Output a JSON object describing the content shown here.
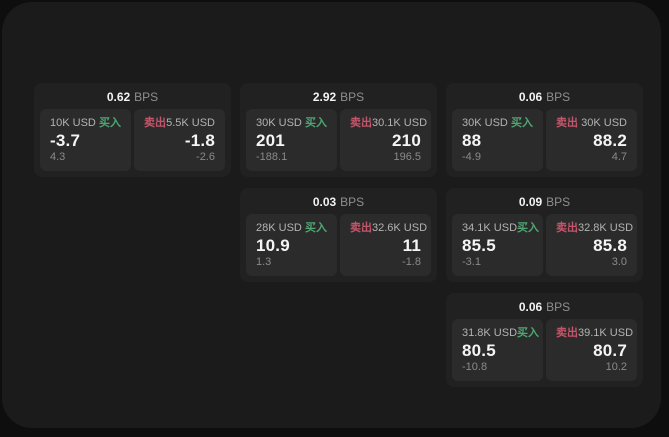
{
  "labels": {
    "buy": "买入",
    "sell": "卖出",
    "bps_unit": "BPS"
  },
  "colors": {
    "buy": "#4fa673",
    "sell": "#c4556a",
    "value_text": "#f5f5f5",
    "muted_text": "#8a8a8a",
    "size_text": "#b3b3b3",
    "card_bg": "#212121",
    "panel_bg": "#2b2b2b",
    "container_bg": "#1b1b1b"
  },
  "cards": [
    {
      "row": 1,
      "col": 1,
      "bps": "0.62",
      "buy": {
        "size": "10K USD",
        "value": "-3.7",
        "sub": "4.3"
      },
      "sell": {
        "size": "5.5K USD",
        "value": "-1.8",
        "sub": "-2.6"
      }
    },
    {
      "row": 1,
      "col": 2,
      "bps": "2.92",
      "buy": {
        "size": "30K USD",
        "value": "201",
        "sub": "-188.1"
      },
      "sell": {
        "size": "30.1K USD",
        "value": "210",
        "sub": "196.5"
      }
    },
    {
      "row": 1,
      "col": 3,
      "bps": "0.06",
      "buy": {
        "size": "30K USD",
        "value": "88",
        "sub": "-4.9"
      },
      "sell": {
        "size": "30K USD",
        "value": "88.2",
        "sub": "4.7"
      }
    },
    {
      "row": 2,
      "col": 2,
      "bps": "0.03",
      "buy": {
        "size": "28K USD",
        "value": "10.9",
        "sub": "1.3"
      },
      "sell": {
        "size": "32.6K USD",
        "value": "11",
        "sub": "-1.8"
      }
    },
    {
      "row": 2,
      "col": 3,
      "bps": "0.09",
      "buy": {
        "size": "34.1K USD",
        "value": "85.5",
        "sub": "-3.1"
      },
      "sell": {
        "size": "32.8K USD",
        "value": "85.8",
        "sub": "3.0"
      }
    },
    {
      "row": 3,
      "col": 3,
      "bps": "0.06",
      "buy": {
        "size": "31.8K USD",
        "value": "80.5",
        "sub": "-10.8"
      },
      "sell": {
        "size": "39.1K USD",
        "value": "80.7",
        "sub": "10.2"
      }
    }
  ]
}
